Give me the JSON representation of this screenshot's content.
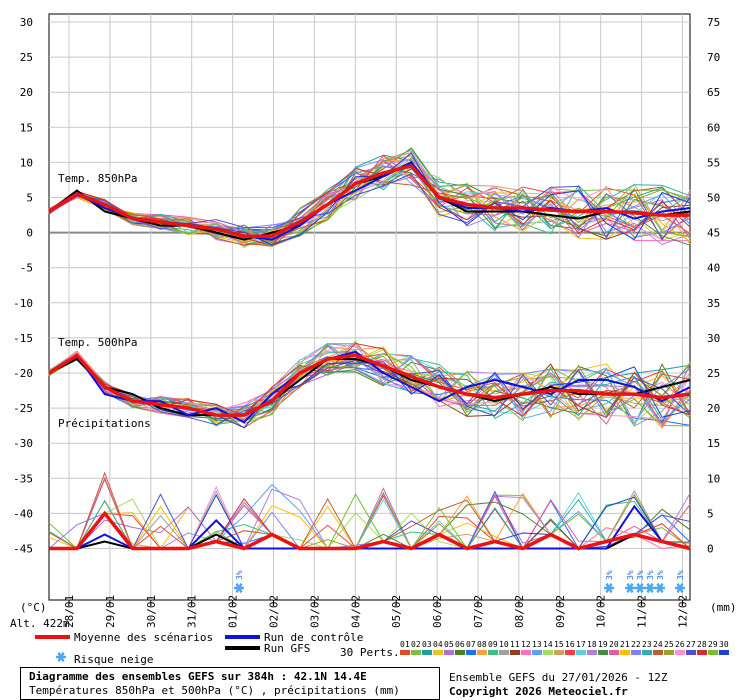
{
  "chart_data": {
    "type": "line",
    "title": "Diagramme des ensembles GEFS sur 384h : 42.1N 14.4E",
    "subtitle": "Températures 850hPa et 500hPa (°C) , précipitations (mm)",
    "left_axis_unit": "(°C)",
    "right_axis_unit": "(mm)",
    "altitude_label": "Alt. 422m",
    "left_ticks": [
      30,
      25,
      20,
      15,
      10,
      5,
      0,
      -5,
      -10,
      -15,
      -20,
      -25,
      -30,
      -35,
      -40,
      -45
    ],
    "right_ticks": [
      75,
      70,
      65,
      60,
      55,
      50,
      45,
      40,
      35,
      30,
      25,
      20,
      15,
      10,
      5,
      0
    ],
    "ylim_temp": [
      -45,
      30
    ],
    "ylim_precip": [
      0,
      75
    ],
    "dates": [
      "28/01",
      "29/01",
      "30/01",
      "31/01",
      "01/02",
      "02/02",
      "03/02",
      "04/02",
      "05/02",
      "06/02",
      "07/02",
      "08/02",
      "09/02",
      "10/02",
      "11/02",
      "12/02"
    ],
    "section_labels": {
      "t850": "Temp. 850hPa",
      "t500": "Temp. 500hPa",
      "precip": "Précipitations"
    },
    "mean_t850": [
      3,
      5.5,
      4,
      2,
      1.5,
      1,
      0.5,
      -0.5,
      -0.5,
      1.5,
      4,
      7,
      8.5,
      9.5,
      5,
      4,
      3.5,
      3.5,
      3.2,
      3,
      3,
      2.8,
      2.5,
      2.5
    ],
    "mean_t500": [
      -20,
      -17.5,
      -22,
      -24,
      -24.5,
      -25,
      -26,
      -26,
      -24,
      -20,
      -18,
      -17.5,
      -19,
      -20.5,
      -22,
      -23,
      -23.5,
      -23,
      -22.5,
      -22.5,
      -23,
      -23,
      -23.5,
      -23
    ],
    "mean_precip": [
      0,
      0,
      5,
      0,
      0,
      0,
      1,
      0,
      2,
      0,
      0,
      0,
      1,
      0,
      2,
      0,
      1,
      0,
      2,
      0,
      1,
      2,
      1,
      0
    ],
    "control_t850": [
      3,
      5.5,
      3.5,
      2,
      1.5,
      1,
      0.5,
      -0.5,
      -1,
      1,
      4,
      6,
      8,
      10,
      5,
      3.5,
      3.5,
      3,
      3.5,
      3,
      3.5,
      2,
      3,
      3.5
    ],
    "control_t500": [
      -20,
      -17.5,
      -23,
      -24,
      -24,
      -26,
      -25,
      -27,
      -23,
      -20,
      -18,
      -17,
      -20,
      -22,
      -24,
      -22,
      -21,
      -22,
      -23,
      -21,
      -21,
      -22,
      -24,
      -22
    ],
    "control_precip": [
      0,
      0,
      2,
      0,
      0,
      0,
      4,
      0,
      0,
      0,
      0,
      0,
      0,
      0,
      0,
      0,
      0,
      0,
      0,
      0,
      0,
      6,
      1,
      0
    ],
    "gfs_t850": [
      3,
      6,
      3,
      2,
      1,
      1,
      0,
      -1,
      0,
      1,
      4,
      7,
      8,
      10,
      5,
      3,
      3,
      3,
      2.5,
      2,
      3,
      3,
      2.5,
      3
    ],
    "gfs_t500": [
      -20,
      -18,
      -22,
      -23,
      -25,
      -26,
      -26,
      -26,
      -24,
      -21,
      -18,
      -18,
      -19,
      -21,
      -22,
      -23,
      -24,
      -23,
      -22,
      -23,
      -23,
      -23,
      -22,
      -21
    ],
    "gfs_precip": [
      0,
      0,
      1,
      0,
      0,
      0,
      2,
      0,
      0,
      0,
      0,
      0,
      0,
      0,
      0,
      0,
      0,
      0,
      0,
      0,
      0,
      2,
      1,
      0
    ],
    "snow_risk": [
      {
        "date": "01/02",
        "pct": "3%"
      },
      {
        "date": "10/02",
        "pct": "3%"
      },
      {
        "date": "11/02",
        "pct": "3%"
      },
      {
        "date": "11/02b",
        "pct": "3%"
      },
      {
        "date": "11/02c",
        "pct": "3%"
      },
      {
        "date": "11/02d",
        "pct": "3%"
      },
      {
        "date": "12/02",
        "pct": "3%"
      }
    ],
    "legend": {
      "mean": "Moyenne des scénarios",
      "control": "Run de contrôle",
      "gfs": "Run GFS",
      "snow": "Risque neige",
      "perts_label": "30 Perts.",
      "pert_numbers": [
        "01",
        "02",
        "03",
        "04",
        "05",
        "06",
        "07",
        "08",
        "09",
        "10",
        "11",
        "12",
        "13",
        "14",
        "15",
        "16",
        "17",
        "18",
        "19",
        "20",
        "21",
        "22",
        "23",
        "24",
        "25",
        "26",
        "27",
        "28",
        "29",
        "30"
      ]
    },
    "colors": {
      "mean": "#ee1111",
      "control": "#1111dd",
      "gfs": "#000000",
      "perts": [
        "#e04a2a",
        "#7fbf3f",
        "#1f9f9f",
        "#f0c020",
        "#b070d0",
        "#4f7f1f",
        "#1f6fef",
        "#ff9f3f",
        "#3fbf7f",
        "#a0a0a0",
        "#8f3f1f",
        "#ff6fbf",
        "#5f9fff",
        "#9fdf5f",
        "#cf9f5f",
        "#ff3f3f",
        "#5fcfdf",
        "#af7fdf",
        "#3f8f3f",
        "#df5f9f",
        "#ffbf00",
        "#7f7fff",
        "#2fafaf",
        "#bf5f2f",
        "#9f9f2f",
        "#ff8fcf",
        "#4f4fcf",
        "#cf2f2f",
        "#6fbf2f",
        "#1f3fcf"
      ]
    }
  },
  "footer": {
    "title": "Diagramme des ensembles GEFS sur 384h : 42.1N 14.4E",
    "subtitle": "Températures 850hPa et 500hPa (°C) , précipitations (mm)",
    "ensemble_info": "Ensemble GEFS du 27/01/2026 - 12Z",
    "copyright": "Copyright 2026 Meteociel.fr"
  }
}
